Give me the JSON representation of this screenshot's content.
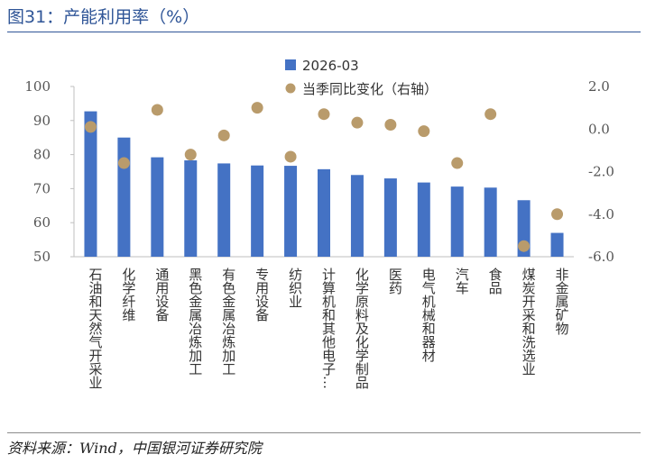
{
  "header": {
    "title": "图31：产能利用率（%）"
  },
  "footer": {
    "source": "资料来源：Wind，中国银河证券研究院"
  },
  "colors": {
    "bar": "#4472c4",
    "dot": "#b99b6b",
    "title": "#2f5597"
  },
  "chart_data": {
    "type": "bar",
    "title": "",
    "categories": [
      "石油和天然气开采业",
      "化学纤维",
      "通用设备",
      "黑色金属冶炼加工",
      "有色金属冶炼加工",
      "专用设备",
      "纺织业",
      "计算机和其他电子…",
      "化学原料及化学制品",
      "医药",
      "电气机械和器材",
      "汽车",
      "食品",
      "煤炭开采和洗选业",
      "非金属矿物"
    ],
    "series": [
      {
        "name": "2026-03",
        "type": "bar",
        "axis": "left",
        "values": [
          92.7,
          85.0,
          79.2,
          78.3,
          77.4,
          76.8,
          76.7,
          75.7,
          74.0,
          73.0,
          71.8,
          70.6,
          70.3,
          66.6,
          57.0
        ]
      },
      {
        "name": "当季同比变化（右轴）",
        "type": "scatter",
        "axis": "right",
        "values": [
          0.1,
          -1.6,
          0.9,
          -1.2,
          -0.3,
          1.0,
          -1.3,
          0.7,
          0.3,
          0.2,
          -0.1,
          -1.6,
          0.7,
          -5.5,
          -4.0
        ]
      }
    ],
    "left_axis": {
      "ylim": [
        50,
        100
      ],
      "ticks": [
        "50",
        "60",
        "70",
        "80",
        "90",
        "100"
      ]
    },
    "right_axis": {
      "ylim": [
        -6,
        2
      ],
      "ticks": [
        "-6.0",
        "-4.0",
        "-2.0",
        "0.0",
        "2.0"
      ]
    },
    "legend": "top-center",
    "grid": false
  }
}
